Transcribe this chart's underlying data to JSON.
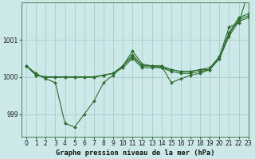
{
  "title": "Graphe pression niveau de la mer (hPa)",
  "bg_color": "#cce8e8",
  "grid_color": "#aacccc",
  "line_color": "#2d6e2d",
  "xlim": [
    -0.5,
    23
  ],
  "ylim": [
    998.4,
    1002.0
  ],
  "yticks": [
    999,
    1000,
    1001
  ],
  "xticks": [
    0,
    1,
    2,
    3,
    4,
    5,
    6,
    7,
    8,
    9,
    10,
    11,
    12,
    13,
    14,
    15,
    16,
    17,
    18,
    19,
    20,
    21,
    22,
    23
  ],
  "series": [
    [
      1000.3,
      1000.1,
      999.95,
      999.85,
      998.75,
      998.65,
      999.0,
      999.35,
      999.85,
      1000.05,
      1000.3,
      1000.7,
      1000.35,
      1000.3,
      1000.3,
      999.85,
      999.95,
      1000.05,
      1000.1,
      1000.2,
      1000.55,
      1001.35,
      1001.45,
      1002.3
    ],
    [
      1000.3,
      1000.05,
      1000.0,
      1000.0,
      1000.0,
      1000.0,
      1000.0,
      1000.0,
      1000.05,
      1000.1,
      1000.25,
      1000.5,
      1000.25,
      1000.25,
      1000.25,
      1000.2,
      1000.15,
      1000.15,
      1000.2,
      1000.2,
      1000.5,
      1001.1,
      1001.5,
      1001.6
    ],
    [
      1000.3,
      1000.05,
      1000.0,
      1000.0,
      1000.0,
      1000.0,
      1000.0,
      1000.0,
      1000.05,
      1000.1,
      1000.3,
      1000.55,
      1000.3,
      1000.3,
      1000.25,
      1000.15,
      1000.1,
      1000.1,
      1000.15,
      1000.2,
      1000.5,
      1001.15,
      1001.55,
      1001.65
    ],
    [
      1000.3,
      1000.05,
      1000.0,
      1000.0,
      1000.0,
      1000.0,
      1000.0,
      1000.0,
      1000.05,
      1000.1,
      1000.3,
      1000.6,
      1000.3,
      1000.3,
      1000.3,
      1000.2,
      1000.15,
      1000.15,
      1000.2,
      1000.25,
      1000.55,
      1001.2,
      1001.6,
      1001.7
    ]
  ]
}
